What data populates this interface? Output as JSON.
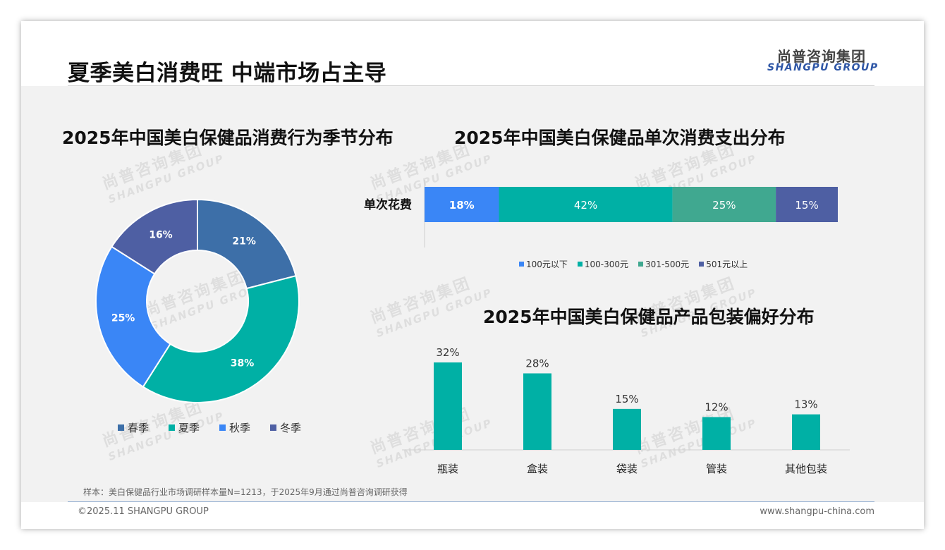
{
  "page": {
    "title": "夏季美白消费旺 中端市场占主导",
    "logo_cn": "尚普咨询集团",
    "logo_en": "SHANGPU GROUP",
    "note": "样本：美白保健品行业市场调研样本量N=1213，于2025年9月通过尚普咨询调研获得",
    "copyright": "©2025.11 SHANGPU GROUP",
    "website": "www.shangpu-china.com"
  },
  "chart_data": [
    {
      "type": "pie",
      "title": "2025年中国美白保健品消费行为季节分布",
      "categories": [
        "春季",
        "夏季",
        "秋季",
        "冬季"
      ],
      "values": [
        21,
        38,
        25,
        16
      ],
      "labels": [
        "21%",
        "38%",
        "25%",
        "16%"
      ],
      "colors": [
        "#3d6fa8",
        "#00b0a5",
        "#3a86f6",
        "#4e5fa3"
      ],
      "legend": "bottom"
    },
    {
      "type": "bar",
      "stacked": true,
      "orientation": "horizontal",
      "title": "2025年中国美白保健品单次消费支出分布",
      "categories": [
        "单次花费"
      ],
      "series": [
        {
          "name": "100元以下",
          "values": [
            18
          ],
          "label": "18%",
          "color": "#3a86f6"
        },
        {
          "name": "100-300元",
          "values": [
            42
          ],
          "label": "42%",
          "color": "#00b0a5"
        },
        {
          "name": "301-500元",
          "values": [
            25
          ],
          "label": "25%",
          "color": "#40a890"
        },
        {
          "name": "501元以上",
          "values": [
            15
          ],
          "label": "15%",
          "color": "#4e5fa3"
        }
      ],
      "legend": "bottom",
      "xlim": [
        0,
        100
      ]
    },
    {
      "type": "bar",
      "title": "2025年中国美白保健品产品包装偏好分布",
      "categories": [
        "瓶装",
        "盒装",
        "袋装",
        "管装",
        "其他包装"
      ],
      "values": [
        32,
        28,
        15,
        12,
        13
      ],
      "labels": [
        "32%",
        "28%",
        "15%",
        "12%",
        "13%"
      ],
      "color": "#00b0a5",
      "ylim": [
        0,
        32
      ]
    }
  ]
}
